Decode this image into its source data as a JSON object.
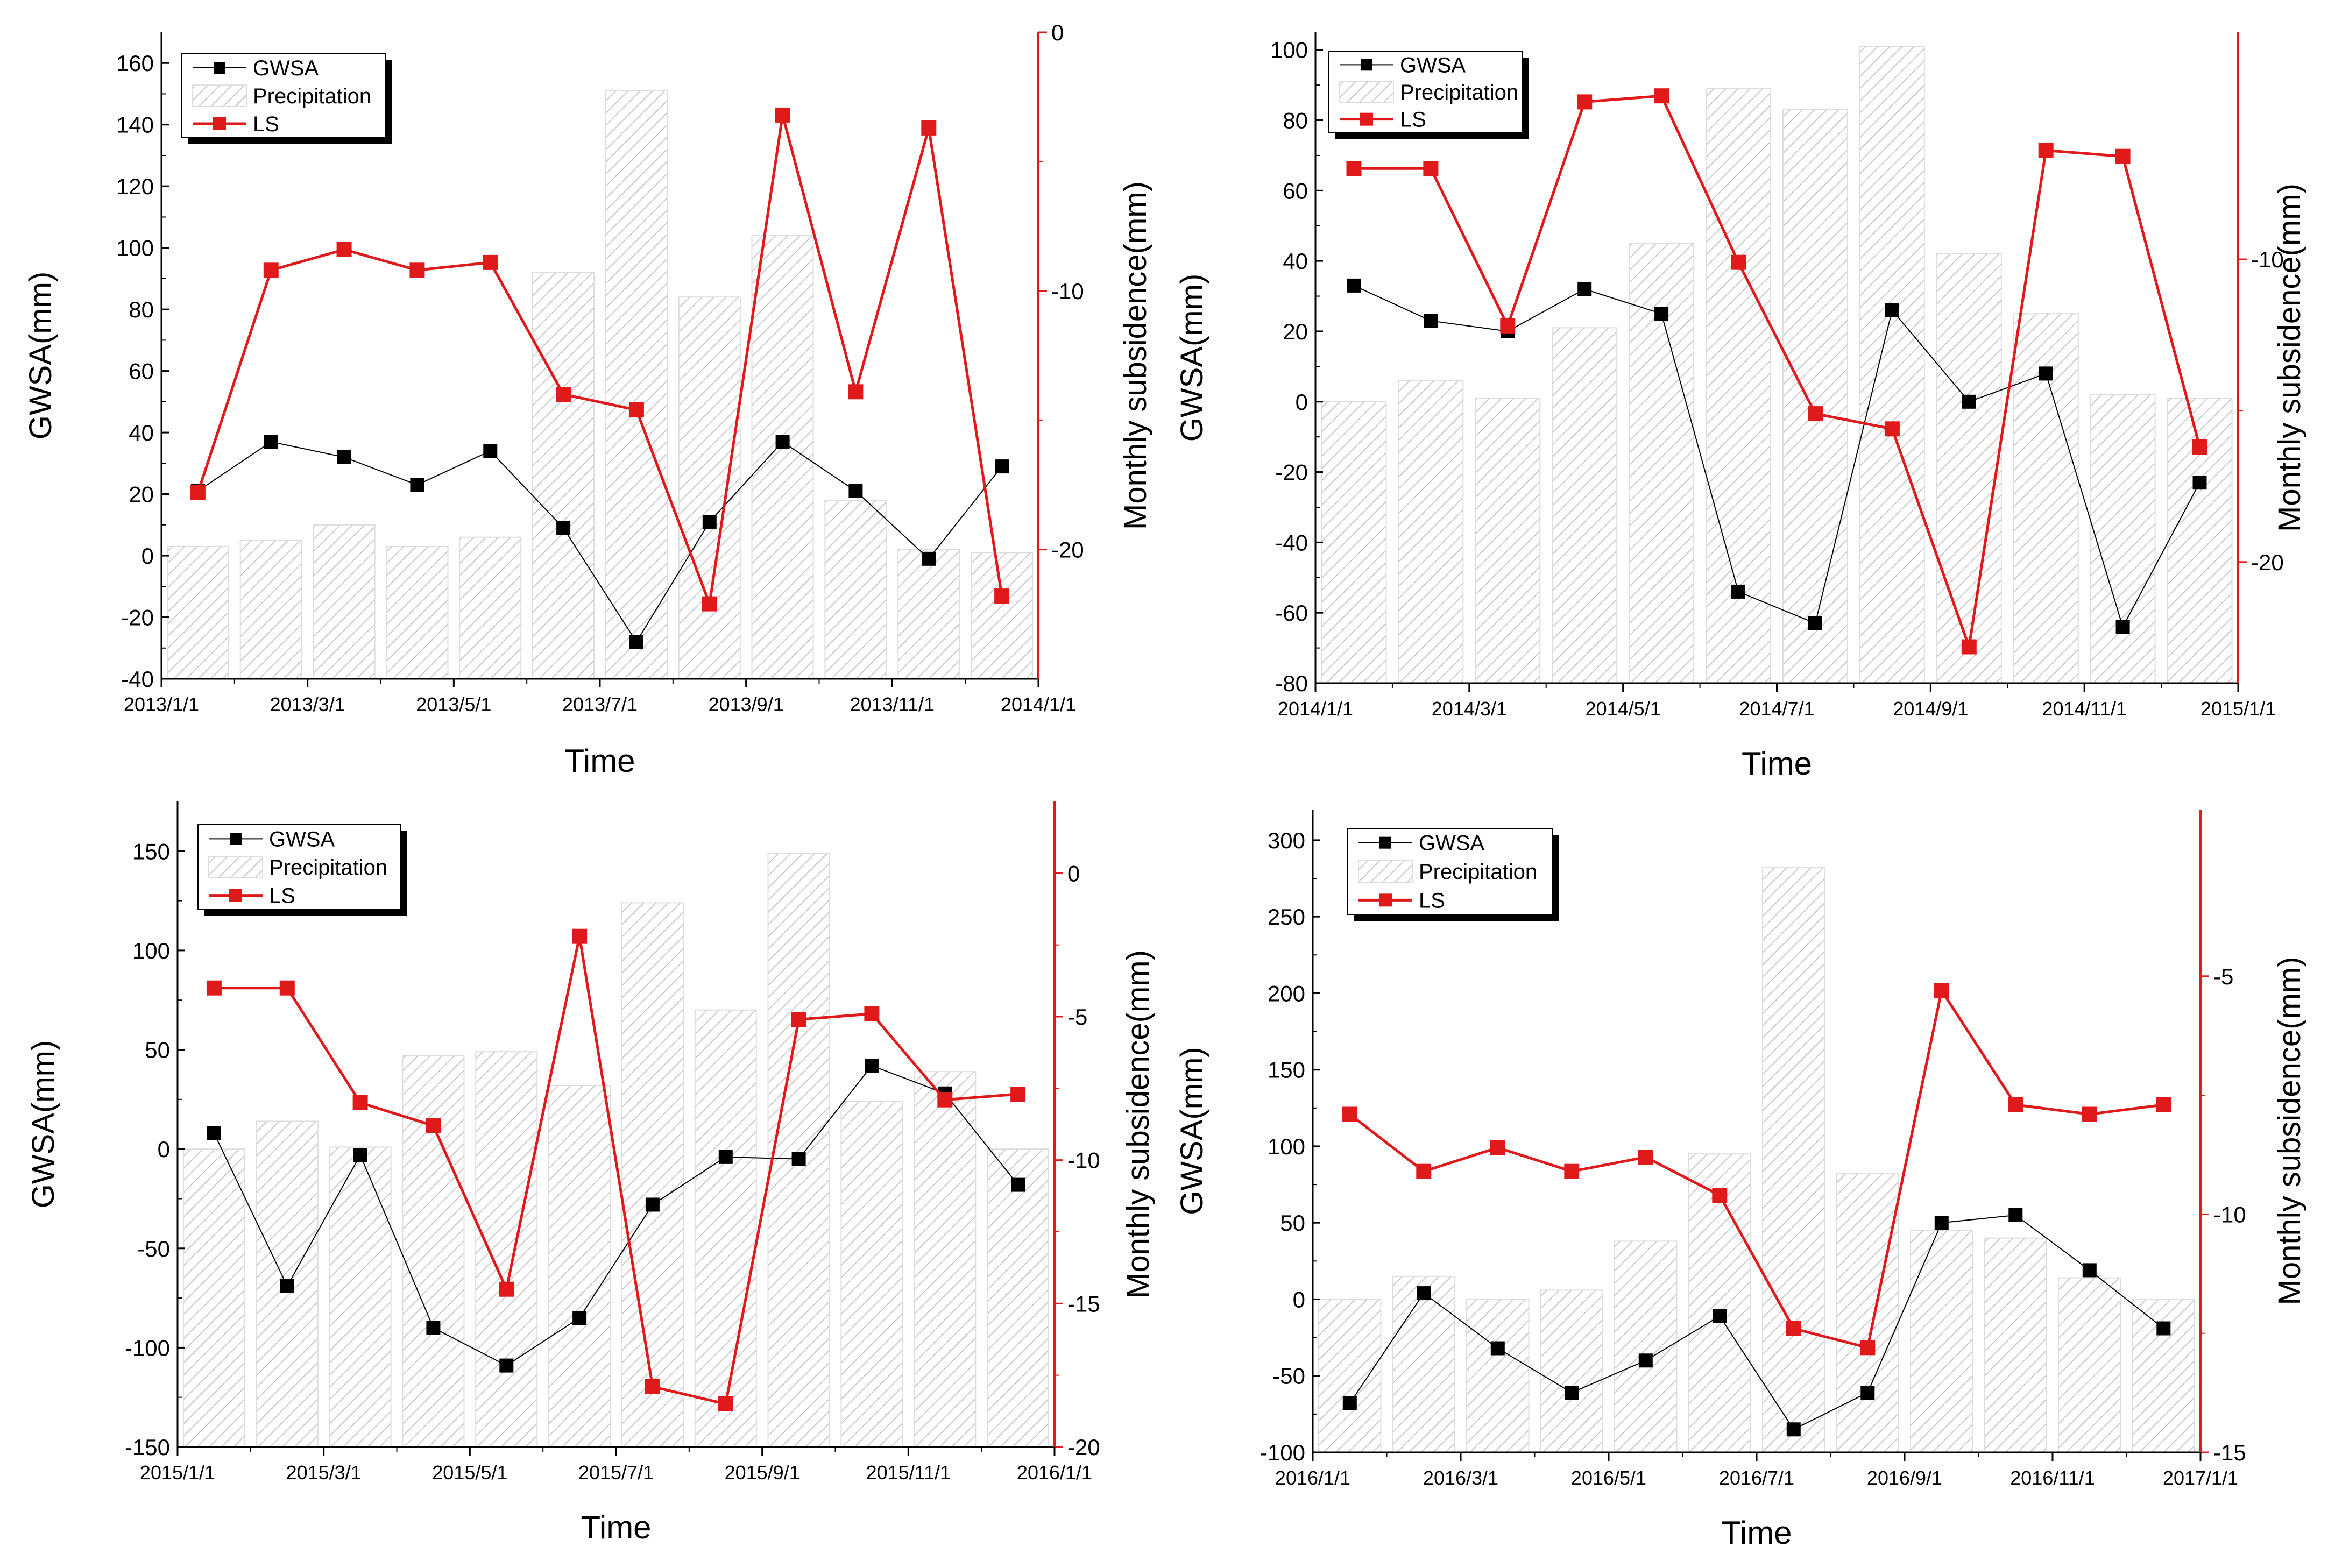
{
  "chart_data": [
    {
      "type": "bar+line",
      "x_title": "Time",
      "y_left_title": "GWSA(mm)",
      "y_right_title": "Monthly subsidence(mm)",
      "x_ticks": [
        "2013/1/1",
        "2013/3/1",
        "2013/5/1",
        "2013/7/1",
        "2013/9/1",
        "2013/11/1",
        "2014/1/1"
      ],
      "y_left_range": [
        -40,
        170
      ],
      "y_left_ticks": [
        -40,
        -20,
        0,
        20,
        40,
        60,
        80,
        100,
        120,
        140,
        160
      ],
      "y_right_range": [
        -25,
        0
      ],
      "y_right_ticks": [
        0,
        -10,
        -20
      ],
      "legend": {
        "position": "top-left",
        "entries": [
          "GWSA",
          "Precipitation",
          "LS"
        ]
      },
      "series": [
        {
          "name": "Precipitation",
          "kind": "bar",
          "values": [
            3,
            5,
            10,
            3,
            6,
            92,
            151,
            84,
            104,
            18,
            2,
            1
          ]
        },
        {
          "name": "GWSA",
          "kind": "line",
          "axis": "left",
          "color": "#000000",
          "values": [
            21,
            37,
            32,
            23,
            34,
            9,
            -28,
            11,
            37,
            21,
            -1,
            29
          ]
        },
        {
          "name": "LS",
          "kind": "line",
          "axis": "right",
          "color": "#e0191b",
          "values": [
            -17.8,
            -9.2,
            -8.4,
            -9.2,
            -8.9,
            -14.0,
            -14.6,
            -22.1,
            -3.2,
            -13.9,
            -3.7,
            -21.8
          ]
        }
      ]
    },
    {
      "type": "bar+line",
      "x_title": "Time",
      "y_left_title": "GWSA(mm)",
      "y_right_title": "Monthly subsidence(mm)",
      "x_ticks": [
        "2014/1/1",
        "2014/3/1",
        "2014/5/1",
        "2014/7/1",
        "2014/9/1",
        "2014/11/1",
        "2015/1/1"
      ],
      "y_left_range": [
        -80,
        105
      ],
      "y_left_ticks": [
        -80,
        -60,
        -40,
        -20,
        0,
        20,
        40,
        60,
        80,
        100
      ],
      "y_right_range": [
        -24,
        -2.5
      ],
      "y_right_ticks": [
        -10,
        -20
      ],
      "legend": {
        "position": "top-left",
        "entries": [
          "GWSA",
          "Precipitation",
          "LS"
        ]
      },
      "series": [
        {
          "name": "Precipitation",
          "kind": "bar",
          "values": [
            0,
            6,
            1,
            21,
            45,
            89,
            83,
            101,
            42,
            25,
            2,
            1
          ]
        },
        {
          "name": "GWSA",
          "kind": "line",
          "axis": "left",
          "color": "#000000",
          "values": [
            33,
            23,
            20,
            32,
            25,
            -54,
            -63,
            26,
            0,
            8,
            -64,
            -23
          ]
        },
        {
          "name": "LS",
          "kind": "line",
          "axis": "right",
          "color": "#e0191b",
          "values": [
            -7.0,
            -7.0,
            -12.2,
            -4.8,
            -4.6,
            -10.1,
            -15.1,
            -15.6,
            -22.8,
            -6.4,
            -6.6,
            -16.2
          ]
        }
      ]
    },
    {
      "type": "bar+line",
      "x_title": "Time",
      "y_left_title": "GWSA(mm)",
      "y_right_title": "Monthly subsidence(mm)",
      "x_ticks": [
        "2015/1/1",
        "2015/3/1",
        "2015/5/1",
        "2015/7/1",
        "2015/9/1",
        "2015/11/1",
        "2016/1/1"
      ],
      "y_left_range": [
        -150,
        175
      ],
      "y_left_ticks": [
        -150,
        -100,
        -50,
        0,
        50,
        100,
        150
      ],
      "y_right_range": [
        -20,
        2.5
      ],
      "y_right_ticks": [
        0,
        -5,
        -10,
        -15,
        -20
      ],
      "legend": {
        "position": "top-left",
        "entries": [
          "GWSA",
          "Precipitation",
          "LS"
        ]
      },
      "series": [
        {
          "name": "Precipitation",
          "kind": "bar",
          "values": [
            0,
            14,
            1,
            47,
            49,
            32,
            124,
            70,
            149,
            24,
            39,
            0
          ]
        },
        {
          "name": "GWSA",
          "kind": "line",
          "axis": "left",
          "color": "#000000",
          "values": [
            8,
            -69,
            -3,
            -90,
            -109,
            -85,
            -28,
            -4,
            -5,
            42,
            28,
            -18
          ]
        },
        {
          "name": "LS",
          "kind": "line",
          "axis": "right",
          "color": "#e0191b",
          "values": [
            -4.0,
            -4.0,
            -8.0,
            -8.8,
            -14.5,
            -2.2,
            -17.9,
            -18.5,
            -5.1,
            -4.9,
            -7.9,
            -7.7
          ]
        }
      ]
    },
    {
      "type": "bar+line",
      "x_title": "Time",
      "y_left_title": "GWSA(mm)",
      "y_right_title": "Monthly subsidence(mm)",
      "x_ticks": [
        "2016/1/1",
        "2016/3/1",
        "2016/5/1",
        "2016/7/1",
        "2016/9/1",
        "2016/11/1",
        "2017/1/1"
      ],
      "y_left_range": [
        -100,
        320
      ],
      "y_left_ticks": [
        -100,
        -50,
        0,
        50,
        100,
        150,
        200,
        250,
        300
      ],
      "y_right_range": [
        -15,
        -1.5
      ],
      "y_right_ticks": [
        -5,
        -10,
        -15
      ],
      "legend": {
        "position": "top-left",
        "entries": [
          "GWSA",
          "Precipitation",
          "LS"
        ]
      },
      "series": [
        {
          "name": "Precipitation",
          "kind": "bar",
          "values": [
            0,
            15,
            0,
            6,
            38,
            95,
            282,
            82,
            45,
            40,
            14,
            0
          ]
        },
        {
          "name": "GWSA",
          "kind": "line",
          "axis": "left",
          "color": "#000000",
          "values": [
            -68,
            4,
            -32,
            -61,
            -40,
            -11,
            -85,
            -61,
            50,
            55,
            19,
            -19
          ]
        },
        {
          "name": "LS",
          "kind": "line",
          "axis": "right",
          "color": "#e0191b",
          "values": [
            -7.9,
            -9.1,
            -8.6,
            -9.1,
            -8.8,
            -9.6,
            -12.4,
            -12.8,
            -5.3,
            -7.7,
            -7.9,
            -7.7
          ]
        }
      ]
    }
  ]
}
